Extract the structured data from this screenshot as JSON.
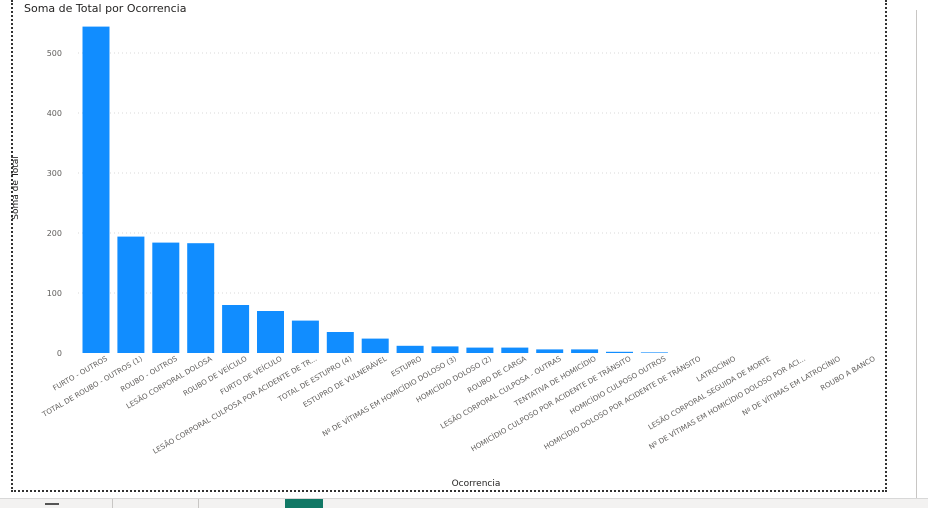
{
  "title": "Soma de Total por Ocorrencia",
  "colors": {
    "bar": "#118dff",
    "grid": "#d9d9d9",
    "text": "#605e5c",
    "active_tab": "#117865"
  },
  "chart_data": {
    "type": "bar",
    "title": "Soma de Total por Ocorrencia",
    "xlabel": "Ocorrencia",
    "ylabel": "Soma de Total",
    "ylim": [
      0,
      550
    ],
    "yticks": [
      0,
      100,
      200,
      300,
      400,
      500
    ],
    "grid": true,
    "categories": [
      "FURTO - OUTROS",
      "TOTAL DE ROUBO - OUTROS (1)",
      "ROUBO - OUTROS",
      "LESÃO CORPORAL DOLOSA",
      "ROUBO DE VEÍCULO",
      "FURTO DE VEÍCULO",
      "LESÃO CORPORAL CULPOSA POR ACIDENTE DE TR...",
      "TOTAL DE ESTUPRO (4)",
      "ESTUPRO DE VULNERÁVEL",
      "ESTUPRO",
      "Nº DE VÍTIMAS EM HOMICÍDIO DOLOSO (3)",
      "HOMICÍDIO DOLOSO (2)",
      "ROUBO DE CARGA",
      "LESÃO CORPORAL CULPOSA - OUTRAS",
      "TENTATIVA DE HOMICÍDIO",
      "HOMICÍDIO CULPOSO POR ACIDENTE DE TRÂNSITO",
      "HOMICÍDIO CULPOSO OUTROS",
      "HOMICÍDIO DOLOSO POR ACIDENTE DE TRÂNSITO",
      "LATROCÍNIO",
      "LESÃO CORPORAL SEGUIDA DE MORTE",
      "Nº DE VÍTIMAS EM HOMICÍDIO DOLOSO POR ACI...",
      "Nº DE VÍTIMAS EM LATROCÍNIO",
      "ROUBO A BANCO"
    ],
    "values": [
      544,
      194,
      184,
      183,
      80,
      70,
      54,
      35,
      24,
      12,
      11,
      9,
      9,
      6,
      6,
      2,
      1,
      0,
      0,
      0,
      0,
      0,
      0
    ]
  }
}
